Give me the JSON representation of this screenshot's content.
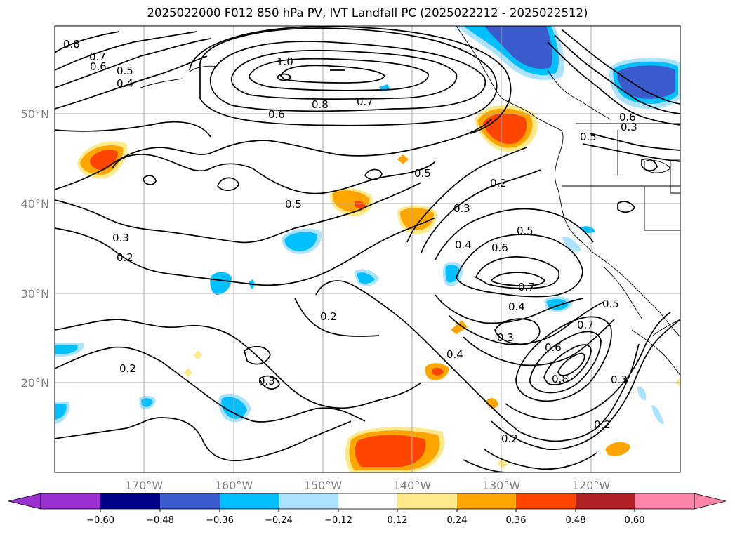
{
  "title": "2025022000 F012 850 hPa PV, IVT Landfall PC (2025022212 - 2025022512)",
  "axes": {
    "lat_labels": [
      "50°N",
      "40°N",
      "30°N",
      "20°N"
    ],
    "lon_labels": [
      "170°W",
      "160°W",
      "150°W",
      "140°W",
      "130°W",
      "120°W"
    ],
    "grid": true
  },
  "contour_labels": [
    "0.8",
    "0.7",
    "0.6",
    "0.5",
    "0.4",
    "1.0",
    "0.6",
    "0.8",
    "0.7",
    "0.5",
    "0.5",
    "0.3",
    "0.2",
    "0.3",
    "0.4",
    "0.5",
    "0.6",
    "0.7",
    "0.4",
    "0.3",
    "0.2",
    "0.4",
    "0.6",
    "0.7",
    "0.5",
    "0.8",
    "0.3",
    "0.2",
    "0.2",
    "0.2",
    "0.3",
    "0.2",
    "0.5",
    "0.6",
    "0.3"
  ],
  "colorbar": {
    "ticks": [
      "−0.60",
      "−0.48",
      "−0.36",
      "−0.24",
      "−0.12",
      "0.12",
      "0.24",
      "0.36",
      "0.48",
      "0.60"
    ],
    "colors": {
      "under": "#9b30d0",
      "bins": [
        "#00008b",
        "#3a5bcc",
        "#00bfff",
        "#ade2ff",
        "#ffffff",
        "#ffe98a",
        "#ffa500",
        "#ff4500",
        "#b22222",
        "#ff85a8"
      ],
      "over": "#ff85a8"
    }
  }
}
